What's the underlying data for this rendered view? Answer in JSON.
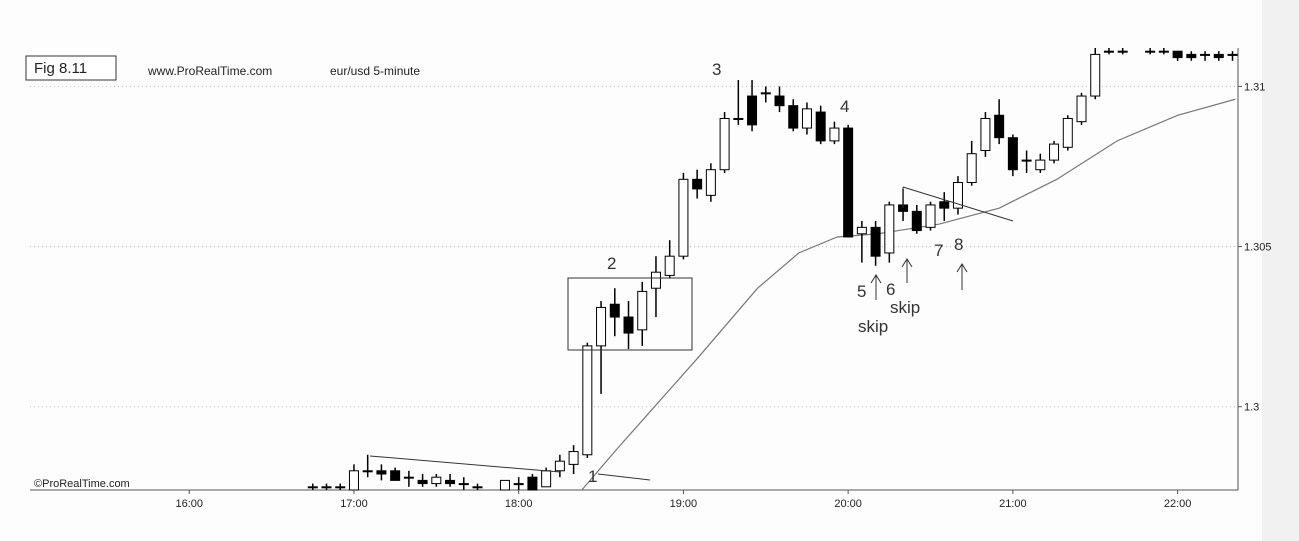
{
  "chart_data": {
    "type": "candlestick",
    "figure_label": "Fig 8.11",
    "source": "www.ProRealTime.com",
    "title": "eur/usd  5-minute",
    "copyright": "©ProRealTime.com",
    "x": [
      "16:45",
      "16:50",
      "16:55",
      "17:00",
      "17:05",
      "17:10",
      "17:15",
      "17:20",
      "17:25",
      "17:30",
      "17:35",
      "17:40",
      "17:45",
      "17:55",
      "18:00",
      "18:05",
      "18:10",
      "18:15",
      "18:20",
      "18:25",
      "18:30",
      "18:35",
      "18:40",
      "18:45",
      "18:50",
      "18:55",
      "19:00",
      "19:05",
      "19:10",
      "19:15",
      "19:20",
      "19:25",
      "19:30",
      "19:35",
      "19:40",
      "19:45",
      "19:50",
      "19:55",
      "20:00",
      "20:05",
      "20:10",
      "20:15",
      "20:20",
      "20:25",
      "20:30",
      "20:35",
      "20:40",
      "20:45",
      "20:50",
      "20:55",
      "21:00",
      "21:05",
      "21:10",
      "21:15",
      "21:20",
      "21:25",
      "21:30",
      "21:35",
      "21:40",
      "21:50",
      "21:55",
      "22:00",
      "22:05",
      "22:10",
      "22:15",
      "22:20"
    ],
    "open": [
      1.2975,
      1.2975,
      1.2975,
      1.2974,
      1.298,
      1.298,
      1.298,
      1.2978,
      1.2977,
      1.2976,
      1.2977,
      1.2976,
      1.2975,
      1.2974,
      1.2976,
      1.2978,
      1.2975,
      1.298,
      1.2982,
      1.2985,
      1.3019,
      1.3032,
      1.3028,
      1.3024,
      1.3037,
      1.3041,
      1.3047,
      1.3071,
      1.3066,
      1.3074,
      1.309,
      1.3097,
      1.3098,
      1.3097,
      1.3094,
      1.3087,
      1.3092,
      1.3083,
      1.3087,
      1.3054,
      1.3056,
      1.3048,
      1.3063,
      1.3061,
      1.3056,
      1.3064,
      1.3062,
      1.307,
      1.308,
      1.3091,
      1.3084,
      1.3077,
      1.3074,
      1.3077,
      1.3081,
      1.3089,
      1.3097,
      1.3111,
      1.3111,
      1.3111,
      1.3111,
      1.3111,
      1.311,
      1.311,
      1.311,
      1.311
    ],
    "high": [
      1.2976,
      1.2976,
      1.2976,
      1.2982,
      1.2985,
      1.2982,
      1.2981,
      1.298,
      1.2979,
      1.2979,
      1.2979,
      1.2978,
      1.2976,
      1.2977,
      1.2978,
      1.2979,
      1.2981,
      1.2985,
      1.2988,
      1.302,
      1.3033,
      1.3037,
      1.3033,
      1.3039,
      1.3047,
      1.3052,
      1.3073,
      1.3074,
      1.3076,
      1.3092,
      1.3102,
      1.3102,
      1.31,
      1.31,
      1.3096,
      1.3095,
      1.3094,
      1.3089,
      1.3088,
      1.3058,
      1.3058,
      1.3064,
      1.3068,
      1.3063,
      1.3064,
      1.3067,
      1.3072,
      1.3083,
      1.3092,
      1.3096,
      1.3085,
      1.308,
      1.3079,
      1.3083,
      1.3091,
      1.3098,
      1.3112,
      1.3112,
      1.3112,
      1.3112,
      1.3112,
      1.3111,
      1.3111,
      1.3111,
      1.3111,
      1.3111
    ],
    "low": [
      1.2974,
      1.2974,
      1.2974,
      1.2974,
      1.2978,
      1.2977,
      1.2977,
      1.2975,
      1.2975,
      1.2975,
      1.2975,
      1.2974,
      1.2974,
      1.2974,
      1.2974,
      1.2974,
      1.2975,
      1.2978,
      1.2979,
      1.2984,
      1.3004,
      1.3022,
      1.3018,
      1.3019,
      1.3028,
      1.304,
      1.3046,
      1.3065,
      1.3064,
      1.3073,
      1.3088,
      1.3086,
      1.3095,
      1.3092,
      1.3086,
      1.3085,
      1.3082,
      1.3082,
      1.3053,
      1.3045,
      1.3044,
      1.3045,
      1.3058,
      1.3054,
      1.3055,
      1.3058,
      1.306,
      1.3069,
      1.3078,
      1.3082,
      1.3072,
      1.3073,
      1.3073,
      1.3076,
      1.308,
      1.3088,
      1.3096,
      1.311,
      1.311,
      1.311,
      1.311,
      1.3108,
      1.3108,
      1.3108,
      1.3108,
      1.3108
    ],
    "close": [
      1.2975,
      1.2975,
      1.2975,
      1.298,
      1.298,
      1.2979,
      1.2977,
      1.2978,
      1.2976,
      1.2978,
      1.2976,
      1.2976,
      1.2975,
      1.2977,
      1.2976,
      1.2974,
      1.298,
      1.2983,
      1.2986,
      1.3019,
      1.3031,
      1.3028,
      1.3023,
      1.3036,
      1.3042,
      1.3047,
      1.3071,
      1.3068,
      1.3074,
      1.309,
      1.309,
      1.3088,
      1.3098,
      1.3094,
      1.3087,
      1.3093,
      1.3083,
      1.3087,
      1.3053,
      1.3056,
      1.3047,
      1.3063,
      1.3061,
      1.3055,
      1.3063,
      1.3062,
      1.307,
      1.3079,
      1.309,
      1.3084,
      1.3074,
      1.3077,
      1.3077,
      1.3082,
      1.309,
      1.3097,
      1.311,
      1.3111,
      1.3111,
      1.3111,
      1.3111,
      1.3109,
      1.3109,
      1.311,
      1.3109,
      1.311
    ],
    "up_color": "#ffffff",
    "down_color": "#000000",
    "moving_average": {
      "color": "#777777",
      "x": [
        "18:23",
        "18:36",
        "19:05",
        "19:27",
        "19:42",
        "19:56",
        "20:11",
        "20:33",
        "20:55",
        "21:16",
        "21:38",
        "22:00",
        "22:21"
      ],
      "values": [
        1.2974,
        1.2987,
        1.3015,
        1.3037,
        1.3048,
        1.3053,
        1.3054,
        1.3057,
        1.3062,
        1.3071,
        1.3083,
        1.3091,
        1.3096
      ]
    },
    "xlim": [
      "15:02",
      "22:22"
    ],
    "xticks": [
      "16:00",
      "17:00",
      "18:00",
      "19:00",
      "20:00",
      "21:00",
      "22:00"
    ],
    "ylim": [
      1.2974,
      1.3112
    ],
    "yticks": [
      1.3,
      1.305,
      1.31
    ],
    "grid": true,
    "annotations": [
      {
        "text": "1"
      },
      {
        "text": "2"
      },
      {
        "text": "3"
      },
      {
        "text": "4"
      },
      {
        "text": "5"
      },
      {
        "text": "6"
      },
      {
        "text": "7"
      },
      {
        "text": "8"
      },
      {
        "text": "skip"
      },
      {
        "text": "skip"
      }
    ]
  }
}
